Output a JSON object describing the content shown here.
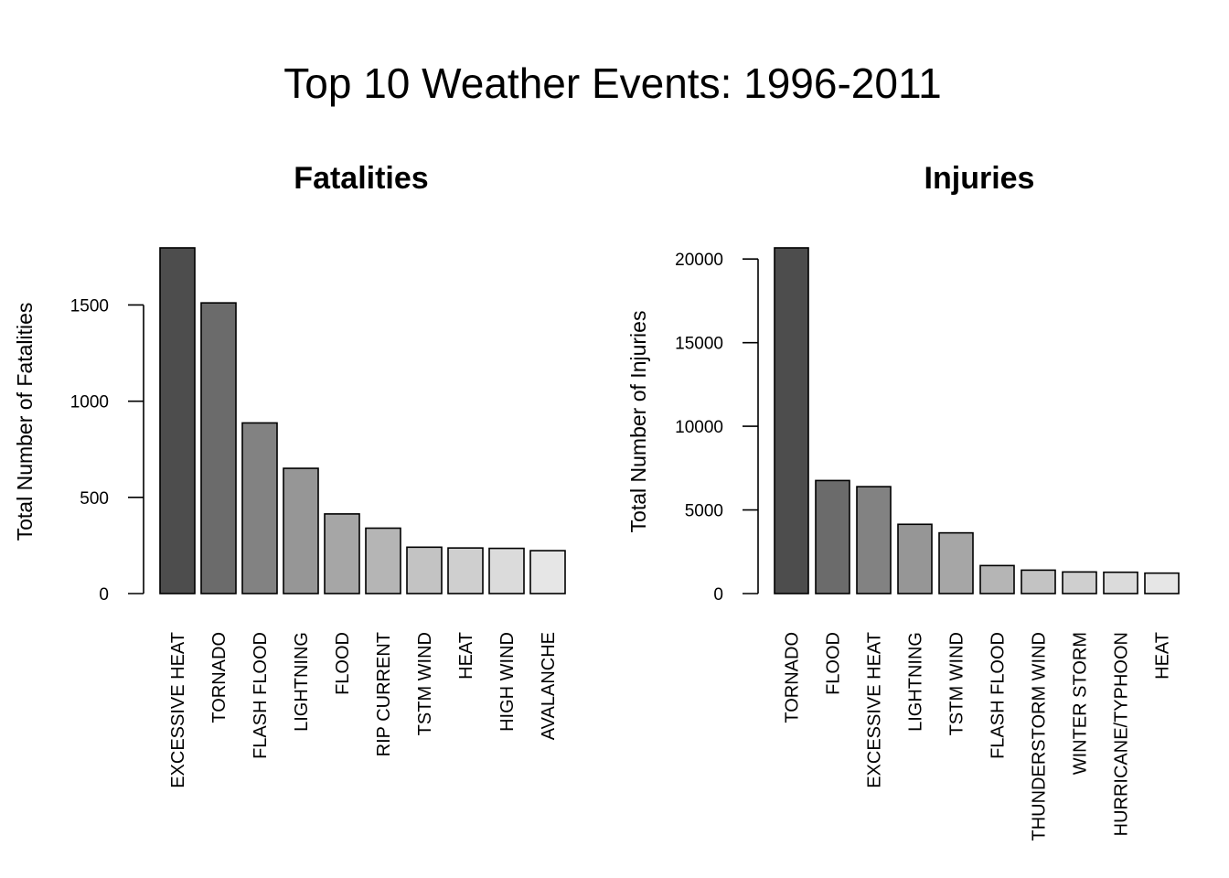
{
  "title": "Top 10 Weather Events: 1996-2011",
  "chart_data": [
    {
      "type": "bar",
      "title": "Fatalities",
      "xlabel": "",
      "ylabel": "Total Number of Fatalities",
      "categories": [
        "EXCESSIVE HEAT",
        "TORNADO",
        "FLASH FLOOD",
        "LIGHTNING",
        "FLOOD",
        "RIP CURRENT",
        "TSTM WIND",
        "HEAT",
        "HIGH WIND",
        "AVALANCHE"
      ],
      "values": [
        1797,
        1511,
        887,
        651,
        414,
        340,
        241,
        237,
        235,
        223
      ],
      "yticks": [
        0,
        500,
        1000,
        1500
      ],
      "ylim": [
        0,
        1797
      ],
      "colors": [
        "#4d4d4d",
        "#6b6b6b",
        "#828282",
        "#969696",
        "#a6a6a6",
        "#b5b5b5",
        "#c3c3c3",
        "#cfcfcf",
        "#dbdbdb",
        "#e6e6e6"
      ],
      "grid": false
    },
    {
      "type": "bar",
      "title": "Injuries",
      "xlabel": "",
      "ylabel": "Total Number of Injuries",
      "categories": [
        "TORNADO",
        "FLOOD",
        "EXCESSIVE HEAT",
        "LIGHTNING",
        "TSTM WIND",
        "FLASH FLOOD",
        "THUNDERSTORM WIND",
        "WINTER STORM",
        "HURRICANE/TYPHOON",
        "HEAT"
      ],
      "values": [
        20667,
        6758,
        6391,
        4141,
        3629,
        1674,
        1400,
        1292,
        1275,
        1222
      ],
      "yticks": [
        0,
        5000,
        10000,
        15000,
        20000
      ],
      "ylim": [
        0,
        20667
      ],
      "colors": [
        "#4d4d4d",
        "#6b6b6b",
        "#828282",
        "#969696",
        "#a6a6a6",
        "#b5b5b5",
        "#c3c3c3",
        "#cfcfcf",
        "#dbdbdb",
        "#e6e6e6"
      ],
      "grid": false
    }
  ]
}
